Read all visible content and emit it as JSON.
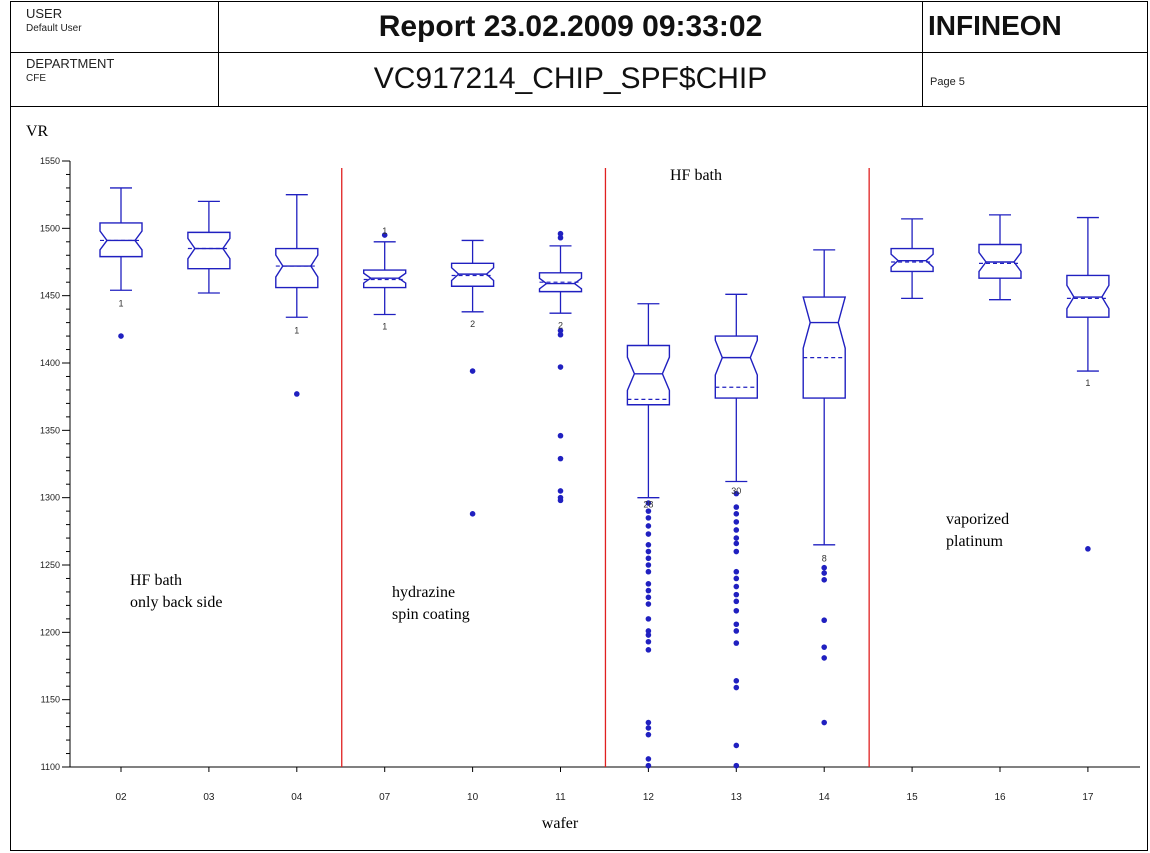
{
  "header": {
    "user_label": "USER",
    "user_value": "Default User",
    "department_label": "DEPARTMENT",
    "department_value": "CFE",
    "report_title": "Report 23.02.2009 09:33:02",
    "subtitle": "VC917214_CHIP_SPF$CHIP",
    "company": "INFINEON",
    "page": "Page 5"
  },
  "colors": {
    "box": "#2020c0",
    "divider": "#e02020",
    "axis": "#000000"
  },
  "chart_data": {
    "type": "box",
    "title": "",
    "ylabel": "VR",
    "xlabel": "wafer",
    "ylim": [
      1100,
      1550
    ],
    "yticks": [
      1100,
      1150,
      1200,
      1250,
      1300,
      1350,
      1400,
      1450,
      1500,
      1550
    ],
    "categories": [
      "02",
      "03",
      "04",
      "07",
      "10",
      "11",
      "12",
      "13",
      "14",
      "15",
      "16",
      "17"
    ],
    "series": [
      {
        "whisker_low": 1454,
        "q1": 1479,
        "median": 1491,
        "mean": 1491,
        "q3": 1504,
        "whisker_high": 1530,
        "outliers": [
          1420
        ],
        "labels": [
          {
            "text": "1",
            "y": 1444
          }
        ]
      },
      {
        "whisker_low": 1452,
        "q1": 1470,
        "median": 1485,
        "mean": 1485,
        "q3": 1497,
        "whisker_high": 1520,
        "outliers": [],
        "labels": []
      },
      {
        "whisker_low": 1434,
        "q1": 1456,
        "median": 1472,
        "mean": 1472,
        "q3": 1485,
        "whisker_high": 1525,
        "outliers": [
          1377
        ],
        "labels": [
          {
            "text": "1",
            "y": 1424
          }
        ]
      },
      {
        "whisker_low": 1436,
        "q1": 1456,
        "median": 1463,
        "mean": 1462,
        "q3": 1469,
        "whisker_high": 1490,
        "outliers": [
          1495
        ],
        "labels": [
          {
            "text": "1",
            "y": 1498
          },
          {
            "text": "1",
            "y": 1427
          }
        ]
      },
      {
        "whisker_low": 1438,
        "q1": 1457,
        "median": 1466,
        "mean": 1465,
        "q3": 1474,
        "whisker_high": 1491,
        "outliers": [
          1394,
          1288
        ],
        "labels": [
          {
            "text": "2",
            "y": 1429
          }
        ]
      },
      {
        "whisker_low": 1437,
        "q1": 1453,
        "median": 1459,
        "mean": 1460,
        "q3": 1467,
        "whisker_high": 1487,
        "outliers": [
          1496,
          1493,
          1424,
          1421,
          1397,
          1346,
          1329,
          1305,
          1300,
          1298
        ],
        "labels": [
          {
            "text": "2",
            "y": 1428
          }
        ]
      },
      {
        "whisker_low": 1300,
        "q1": 1369,
        "median": 1392,
        "mean": 1373,
        "q3": 1413,
        "whisker_high": 1444,
        "outliers": [
          1296,
          1290,
          1285,
          1279,
          1273,
          1265,
          1260,
          1255,
          1250,
          1245,
          1236,
          1231,
          1226,
          1221,
          1210,
          1201,
          1198,
          1193,
          1187,
          1133,
          1129,
          1124,
          1106,
          1101
        ],
        "labels": [
          {
            "text": "28",
            "y": 1295
          }
        ]
      },
      {
        "whisker_low": 1312,
        "q1": 1374,
        "median": 1404,
        "mean": 1382,
        "q3": 1420,
        "whisker_high": 1451,
        "outliers": [
          1303,
          1293,
          1288,
          1282,
          1276,
          1270,
          1266,
          1260,
          1245,
          1240,
          1234,
          1228,
          1223,
          1216,
          1206,
          1201,
          1192,
          1164,
          1159,
          1116,
          1101
        ],
        "labels": [
          {
            "text": "30",
            "y": 1305
          }
        ]
      },
      {
        "whisker_low": 1265,
        "q1": 1374,
        "median": 1430,
        "mean": 1404,
        "q3": 1449,
        "whisker_high": 1484,
        "outliers": [
          1248,
          1244,
          1239,
          1209,
          1189,
          1181,
          1133
        ],
        "labels": [
          {
            "text": "8",
            "y": 1255
          }
        ]
      },
      {
        "whisker_low": 1448,
        "q1": 1468,
        "median": 1476,
        "mean": 1475,
        "q3": 1485,
        "whisker_high": 1507,
        "outliers": [],
        "labels": []
      },
      {
        "whisker_low": 1447,
        "q1": 1463,
        "median": 1475,
        "mean": 1474,
        "q3": 1488,
        "whisker_high": 1510,
        "outliers": [],
        "labels": []
      },
      {
        "whisker_low": 1394,
        "q1": 1434,
        "median": 1449,
        "mean": 1448,
        "q3": 1465,
        "whisker_high": 1508,
        "outliers": [
          1262
        ],
        "labels": [
          {
            "text": "1",
            "y": 1385
          }
        ]
      }
    ],
    "group_dividers_after": [
      "04",
      "11",
      "14"
    ],
    "annotations": [
      {
        "lines": [
          "HF bath",
          "only back side"
        ]
      },
      {
        "lines": [
          "hydrazine",
          "spin coating"
        ]
      },
      {
        "lines": [
          "HF bath"
        ]
      },
      {
        "lines": [
          "vaporized",
          "platinum"
        ]
      }
    ],
    "grid": false,
    "legend": "none"
  }
}
